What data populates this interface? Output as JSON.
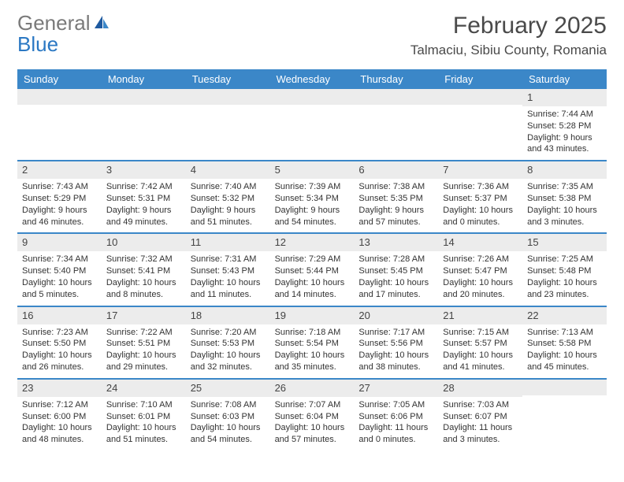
{
  "logo": {
    "part1": "General",
    "part2": "Blue"
  },
  "title": "February 2025",
  "location": "Talmaciu, Sibiu County, Romania",
  "colors": {
    "header_bg": "#3b87c8",
    "header_text": "#ffffff",
    "daynum_bg": "#ececec",
    "week_divider": "#3b87c8",
    "logo_general": "#7a7a7a",
    "logo_blue": "#2b78c3",
    "body_text": "#333333"
  },
  "dow": [
    "Sunday",
    "Monday",
    "Tuesday",
    "Wednesday",
    "Thursday",
    "Friday",
    "Saturday"
  ],
  "weeks": [
    [
      {
        "n": "",
        "sunrise": "",
        "sunset": "",
        "daylight": ""
      },
      {
        "n": "",
        "sunrise": "",
        "sunset": "",
        "daylight": ""
      },
      {
        "n": "",
        "sunrise": "",
        "sunset": "",
        "daylight": ""
      },
      {
        "n": "",
        "sunrise": "",
        "sunset": "",
        "daylight": ""
      },
      {
        "n": "",
        "sunrise": "",
        "sunset": "",
        "daylight": ""
      },
      {
        "n": "",
        "sunrise": "",
        "sunset": "",
        "daylight": ""
      },
      {
        "n": "1",
        "sunrise": "Sunrise: 7:44 AM",
        "sunset": "Sunset: 5:28 PM",
        "daylight": "Daylight: 9 hours and 43 minutes."
      }
    ],
    [
      {
        "n": "2",
        "sunrise": "Sunrise: 7:43 AM",
        "sunset": "Sunset: 5:29 PM",
        "daylight": "Daylight: 9 hours and 46 minutes."
      },
      {
        "n": "3",
        "sunrise": "Sunrise: 7:42 AM",
        "sunset": "Sunset: 5:31 PM",
        "daylight": "Daylight: 9 hours and 49 minutes."
      },
      {
        "n": "4",
        "sunrise": "Sunrise: 7:40 AM",
        "sunset": "Sunset: 5:32 PM",
        "daylight": "Daylight: 9 hours and 51 minutes."
      },
      {
        "n": "5",
        "sunrise": "Sunrise: 7:39 AM",
        "sunset": "Sunset: 5:34 PM",
        "daylight": "Daylight: 9 hours and 54 minutes."
      },
      {
        "n": "6",
        "sunrise": "Sunrise: 7:38 AM",
        "sunset": "Sunset: 5:35 PM",
        "daylight": "Daylight: 9 hours and 57 minutes."
      },
      {
        "n": "7",
        "sunrise": "Sunrise: 7:36 AM",
        "sunset": "Sunset: 5:37 PM",
        "daylight": "Daylight: 10 hours and 0 minutes."
      },
      {
        "n": "8",
        "sunrise": "Sunrise: 7:35 AM",
        "sunset": "Sunset: 5:38 PM",
        "daylight": "Daylight: 10 hours and 3 minutes."
      }
    ],
    [
      {
        "n": "9",
        "sunrise": "Sunrise: 7:34 AM",
        "sunset": "Sunset: 5:40 PM",
        "daylight": "Daylight: 10 hours and 5 minutes."
      },
      {
        "n": "10",
        "sunrise": "Sunrise: 7:32 AM",
        "sunset": "Sunset: 5:41 PM",
        "daylight": "Daylight: 10 hours and 8 minutes."
      },
      {
        "n": "11",
        "sunrise": "Sunrise: 7:31 AM",
        "sunset": "Sunset: 5:43 PM",
        "daylight": "Daylight: 10 hours and 11 minutes."
      },
      {
        "n": "12",
        "sunrise": "Sunrise: 7:29 AM",
        "sunset": "Sunset: 5:44 PM",
        "daylight": "Daylight: 10 hours and 14 minutes."
      },
      {
        "n": "13",
        "sunrise": "Sunrise: 7:28 AM",
        "sunset": "Sunset: 5:45 PM",
        "daylight": "Daylight: 10 hours and 17 minutes."
      },
      {
        "n": "14",
        "sunrise": "Sunrise: 7:26 AM",
        "sunset": "Sunset: 5:47 PM",
        "daylight": "Daylight: 10 hours and 20 minutes."
      },
      {
        "n": "15",
        "sunrise": "Sunrise: 7:25 AM",
        "sunset": "Sunset: 5:48 PM",
        "daylight": "Daylight: 10 hours and 23 minutes."
      }
    ],
    [
      {
        "n": "16",
        "sunrise": "Sunrise: 7:23 AM",
        "sunset": "Sunset: 5:50 PM",
        "daylight": "Daylight: 10 hours and 26 minutes."
      },
      {
        "n": "17",
        "sunrise": "Sunrise: 7:22 AM",
        "sunset": "Sunset: 5:51 PM",
        "daylight": "Daylight: 10 hours and 29 minutes."
      },
      {
        "n": "18",
        "sunrise": "Sunrise: 7:20 AM",
        "sunset": "Sunset: 5:53 PM",
        "daylight": "Daylight: 10 hours and 32 minutes."
      },
      {
        "n": "19",
        "sunrise": "Sunrise: 7:18 AM",
        "sunset": "Sunset: 5:54 PM",
        "daylight": "Daylight: 10 hours and 35 minutes."
      },
      {
        "n": "20",
        "sunrise": "Sunrise: 7:17 AM",
        "sunset": "Sunset: 5:56 PM",
        "daylight": "Daylight: 10 hours and 38 minutes."
      },
      {
        "n": "21",
        "sunrise": "Sunrise: 7:15 AM",
        "sunset": "Sunset: 5:57 PM",
        "daylight": "Daylight: 10 hours and 41 minutes."
      },
      {
        "n": "22",
        "sunrise": "Sunrise: 7:13 AM",
        "sunset": "Sunset: 5:58 PM",
        "daylight": "Daylight: 10 hours and 45 minutes."
      }
    ],
    [
      {
        "n": "23",
        "sunrise": "Sunrise: 7:12 AM",
        "sunset": "Sunset: 6:00 PM",
        "daylight": "Daylight: 10 hours and 48 minutes."
      },
      {
        "n": "24",
        "sunrise": "Sunrise: 7:10 AM",
        "sunset": "Sunset: 6:01 PM",
        "daylight": "Daylight: 10 hours and 51 minutes."
      },
      {
        "n": "25",
        "sunrise": "Sunrise: 7:08 AM",
        "sunset": "Sunset: 6:03 PM",
        "daylight": "Daylight: 10 hours and 54 minutes."
      },
      {
        "n": "26",
        "sunrise": "Sunrise: 7:07 AM",
        "sunset": "Sunset: 6:04 PM",
        "daylight": "Daylight: 10 hours and 57 minutes."
      },
      {
        "n": "27",
        "sunrise": "Sunrise: 7:05 AM",
        "sunset": "Sunset: 6:06 PM",
        "daylight": "Daylight: 11 hours and 0 minutes."
      },
      {
        "n": "28",
        "sunrise": "Sunrise: 7:03 AM",
        "sunset": "Sunset: 6:07 PM",
        "daylight": "Daylight: 11 hours and 3 minutes."
      },
      {
        "n": "",
        "sunrise": "",
        "sunset": "",
        "daylight": ""
      }
    ]
  ]
}
